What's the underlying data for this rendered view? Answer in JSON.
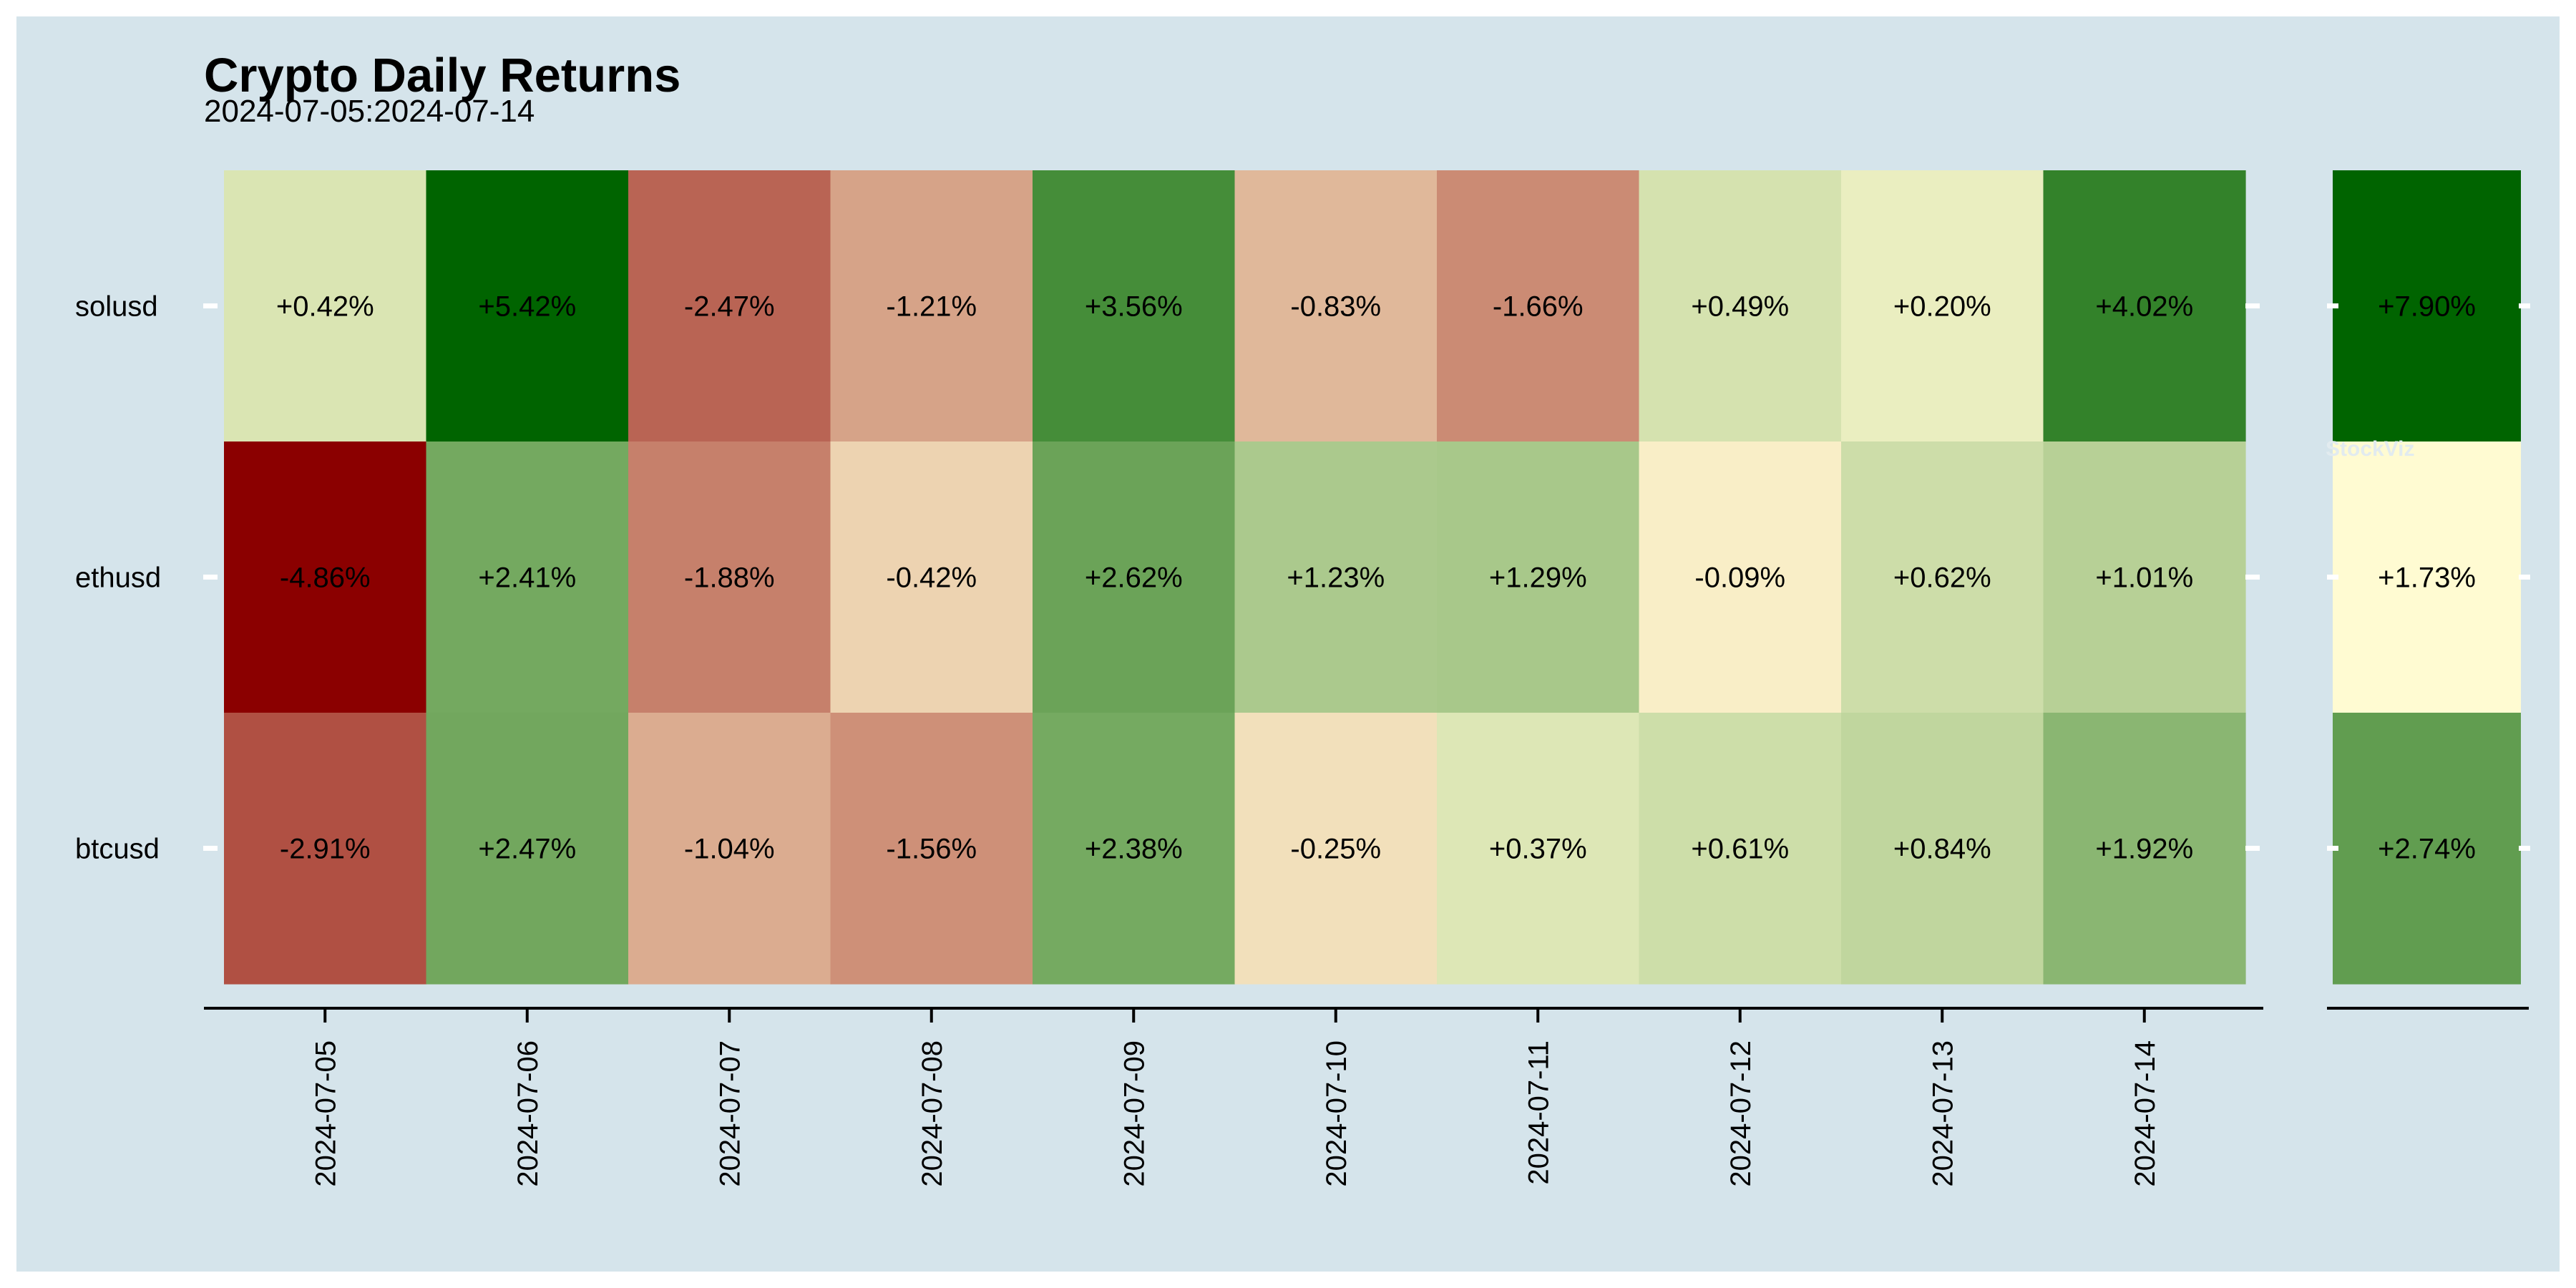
{
  "title": "Crypto Daily Returns",
  "subtitle": "2024-07-05:2024-07-14",
  "watermark": "StockViz",
  "colors": {
    "background": "#d5e4eb",
    "negative_max": "#8b0000",
    "neutral": "#fffbd2",
    "positive_max": "#006400",
    "axis": "#000000",
    "tick_marks": "#ffffff"
  },
  "chart_data": {
    "type": "heatmap",
    "title": "Crypto Daily Returns",
    "subtitle": "2024-07-05:2024-07-14",
    "x": [
      "2024-07-05",
      "2024-07-06",
      "2024-07-07",
      "2024-07-08",
      "2024-07-09",
      "2024-07-10",
      "2024-07-11",
      "2024-07-12",
      "2024-07-13",
      "2024-07-14"
    ],
    "y": [
      "solusd",
      "ethusd",
      "btcusd"
    ],
    "values": [
      [
        0.42,
        5.42,
        -2.47,
        -1.21,
        3.56,
        -0.83,
        -1.66,
        0.49,
        0.2,
        4.02
      ],
      [
        -4.86,
        2.41,
        -1.88,
        -0.42,
        2.62,
        1.23,
        1.29,
        -0.09,
        0.62,
        1.01
      ],
      [
        -2.91,
        2.47,
        -1.04,
        -1.56,
        2.38,
        -0.25,
        0.37,
        0.61,
        0.84,
        1.92
      ]
    ],
    "labels": [
      [
        "+0.42%",
        "+5.42%",
        "-2.47%",
        "-1.21%",
        "+3.56%",
        "-0.83%",
        "-1.66%",
        "+0.49%",
        "+0.20%",
        "+4.02%"
      ],
      [
        "-4.86%",
        "+2.41%",
        "-1.88%",
        "-0.42%",
        "+2.62%",
        "+1.23%",
        "+1.29%",
        "-0.09%",
        "+0.62%",
        "+1.01%"
      ],
      [
        "-2.91%",
        "+2.47%",
        "-1.04%",
        "-1.56%",
        "+2.38%",
        "-0.25%",
        "+0.37%",
        "+0.61%",
        "+0.84%",
        "+1.92%"
      ]
    ],
    "totals": {
      "values": [
        7.9,
        1.73,
        2.74
      ],
      "labels": [
        "+7.90%",
        "+1.73%",
        "+2.74%"
      ]
    },
    "legend": "none",
    "grid": false
  }
}
